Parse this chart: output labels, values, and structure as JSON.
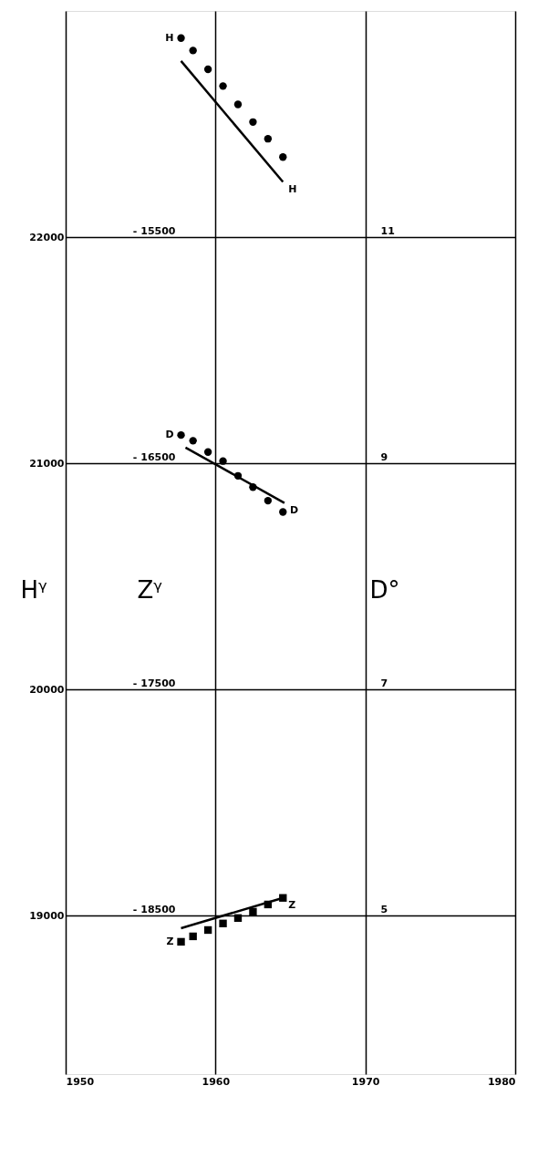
{
  "chart_data": {
    "type": "scatter",
    "ylabel": "Hᵞ",
    "y2label": "Zᵞ",
    "y3label": "D°",
    "xlim": [
      1950,
      1980
    ],
    "xticks": [
      1950,
      1960,
      1970,
      1980
    ],
    "ylim": [
      18300,
      23000
    ],
    "yticks": [
      19000,
      20000,
      21000,
      22000
    ],
    "y2lim": [
      -19200,
      -14500
    ],
    "y2ticks": [
      {
        "value": -18500,
        "label": "- 18500"
      },
      {
        "value": -17500,
        "label": "- 17500"
      },
      {
        "value": -16500,
        "label": "- 16500"
      },
      {
        "value": -15500,
        "label": "- 15500"
      }
    ],
    "y3lim": [
      3.6,
      13.0
    ],
    "y3ticks": [
      5,
      7,
      9,
      11
    ],
    "grid": true,
    "series": [
      {
        "name": "H",
        "axis": "y",
        "marker": "circle",
        "color": "#000000",
        "x": [
          1957.7,
          1958.5,
          1959.5,
          1960.5,
          1961.5,
          1962.5,
          1963.5,
          1964.5
        ],
        "values": [
          22880,
          22825,
          22742,
          22668,
          22587,
          22509,
          22435,
          22354
        ]
      },
      {
        "name": "H",
        "type": "line",
        "axis": "y",
        "marker": "none",
        "color": "#000000",
        "x": [
          1957.7,
          1964.5
        ],
        "values": [
          22779,
          22244
        ]
      },
      {
        "name": "D",
        "axis": "y3",
        "marker": "circle",
        "color": "#000000",
        "x": [
          1957.7,
          1958.5,
          1959.5,
          1960.5,
          1961.5,
          1962.5,
          1963.5,
          1964.5
        ],
        "values": [
          9.25,
          9.2,
          9.1,
          9.02,
          8.89,
          8.79,
          8.67,
          8.57
        ]
      },
      {
        "name": "D",
        "type": "line",
        "axis": "y3",
        "marker": "none",
        "color": "#000000",
        "x": [
          1958.0,
          1964.6
        ],
        "values": [
          9.14,
          8.65
        ]
      },
      {
        "name": "Z",
        "axis": "y2",
        "marker": "square",
        "color": "#000000",
        "x": [
          1957.7,
          1958.5,
          1959.5,
          1960.5,
          1961.5,
          1962.5,
          1963.5,
          1964.5
        ],
        "values": [
          -18615,
          -18591,
          -18563,
          -18534,
          -18510,
          -18482,
          -18450,
          -18421
        ]
      },
      {
        "name": "Z",
        "type": "line",
        "axis": "y2",
        "marker": "none",
        "color": "#000000",
        "x": [
          1957.7,
          1964.5
        ],
        "values": [
          -18555,
          -18421
        ]
      }
    ]
  }
}
